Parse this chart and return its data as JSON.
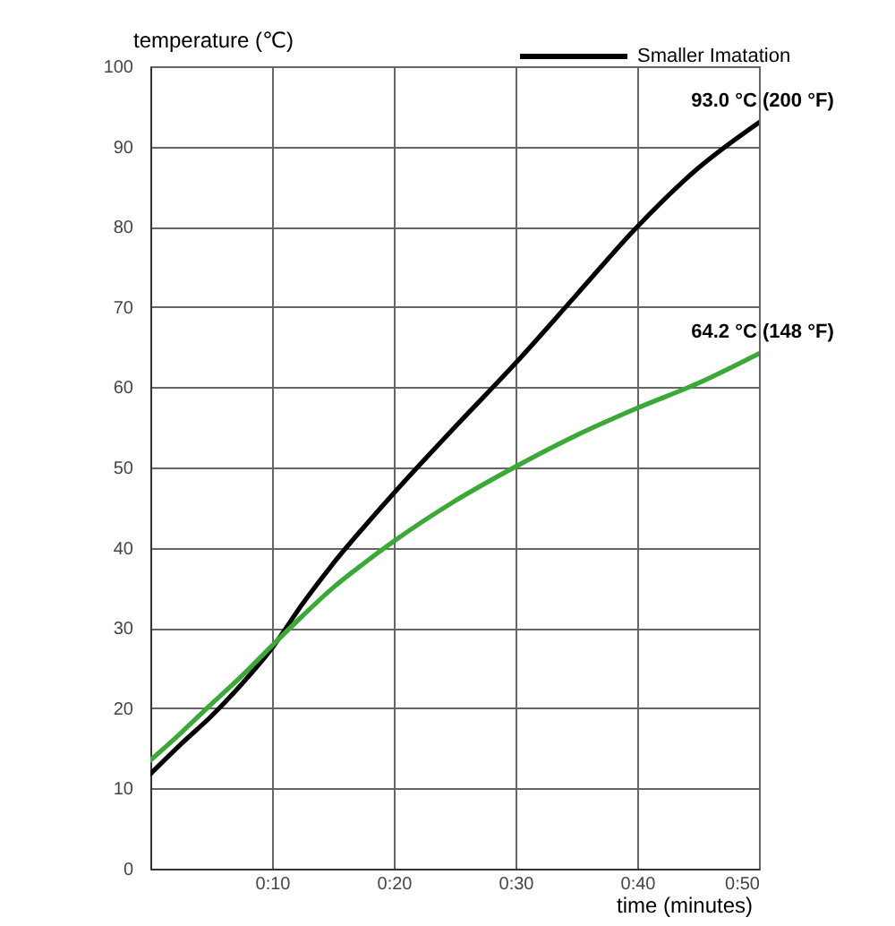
{
  "chart_data": {
    "type": "line",
    "xlabel": "time (minutes)",
    "ylabel": "temperature (℃)",
    "x": [
      0,
      2.5,
      5,
      7.5,
      10,
      12.5,
      15,
      17.5,
      20,
      25,
      30,
      35,
      40,
      45,
      50
    ],
    "series": [
      {
        "name": "Smaller Imatation",
        "color": "#000000",
        "values": [
          11.8,
          15.5,
          19,
          23,
          27.5,
          33,
          38,
          42.5,
          46.8,
          55,
          63,
          71.5,
          80,
          87.3,
          93.0
        ]
      },
      {
        "color": "#3aa935",
        "values": [
          13.5,
          16.9,
          20.5,
          24,
          27.8,
          31.5,
          35,
          38,
          40.8,
          45.8,
          50.1,
          54,
          57.4,
          60.5,
          64.2
        ]
      }
    ],
    "xlim": [
      0,
      50
    ],
    "xticks": [
      {
        "value": 10,
        "label": "0:10"
      },
      {
        "value": 20,
        "label": "0:20"
      },
      {
        "value": 30,
        "label": "0:30"
      },
      {
        "value": 40,
        "label": "0:40"
      },
      {
        "value": 50,
        "label": "0:50"
      }
    ],
    "ylim": [
      0,
      100
    ],
    "yticks": [
      0,
      10,
      20,
      30,
      40,
      50,
      60,
      70,
      80,
      90,
      100
    ],
    "grid": true,
    "legend": "top right",
    "annotations": [
      {
        "text": "93.0 °C  (200 °F)",
        "x": 50,
        "y": 93.0
      },
      {
        "text": "64.2 °C  (148 °F)",
        "x": 50,
        "y": 64.2
      }
    ]
  }
}
